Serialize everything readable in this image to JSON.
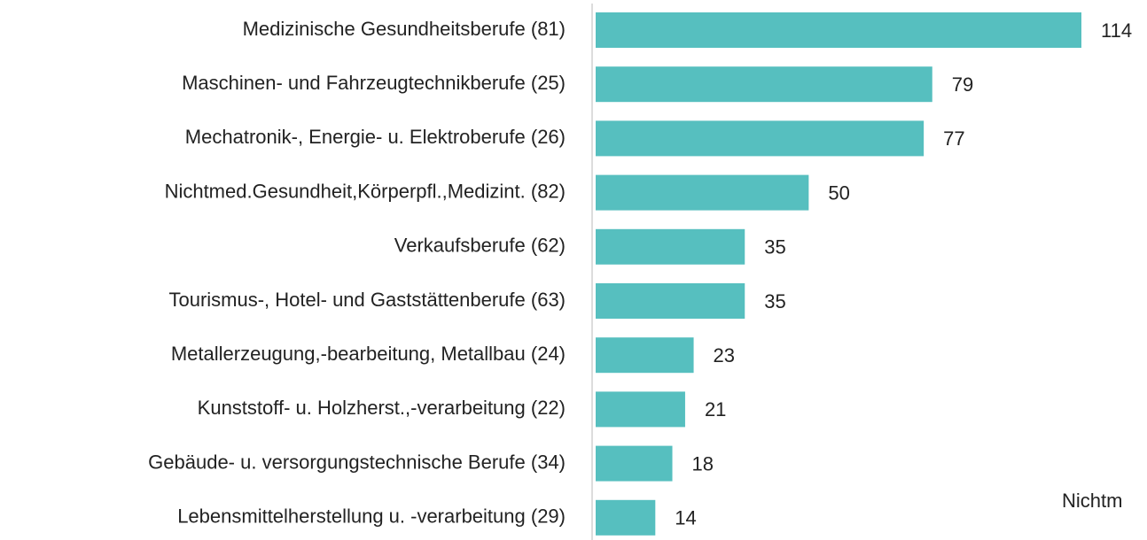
{
  "chart_data": {
    "type": "bar",
    "orientation": "horizontal",
    "categories": [
      "Medizinische Gesundheitsberufe (81)",
      "Maschinen- und Fahrzeugtechnikberufe (25)",
      "Mechatronik-, Energie- u. Elektroberufe (26)",
      "Nichtmed.Gesundheit,Körperpfl.,Medizint. (82)",
      "Verkaufsberufe (62)",
      "Tourismus-, Hotel- und Gaststättenberufe (63)",
      "Metallerzeugung,-bearbeitung, Metallbau (24)",
      "Kunststoff- u. Holzherst.,-verarbeitung (22)",
      "Gebäude- u. versorgungstechnische Berufe (34)",
      "Lebensmittelherstellung u. -verarbeitung (29)"
    ],
    "values": [
      114,
      79,
      77,
      50,
      35,
      35,
      23,
      21,
      18,
      14
    ],
    "color": "#56bfbf",
    "annotation": "Nichtm"
  }
}
